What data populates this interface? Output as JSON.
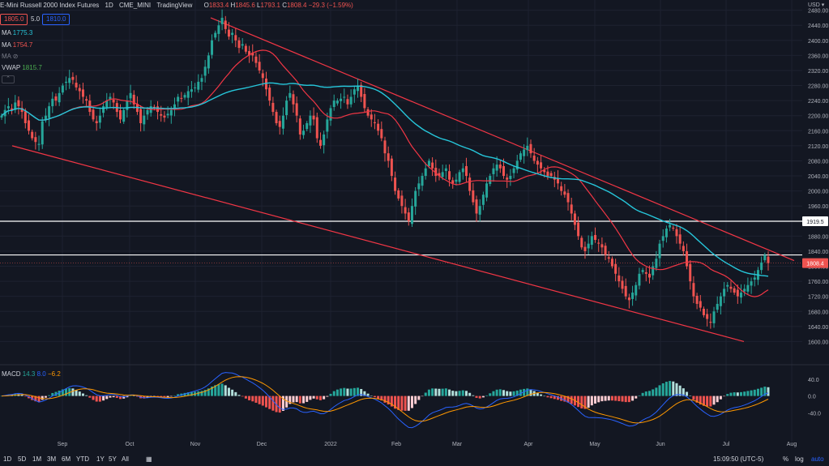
{
  "header": {
    "symbol": "E-Mini Russell 2000 Index Futures",
    "interval": "1D",
    "exchange": "CME_MINI",
    "source": "TradingView",
    "ohlc": {
      "o_label": "O",
      "o": "1833.4",
      "h_label": "H",
      "h": "1845.6",
      "l_label": "L",
      "l": "1793.1",
      "c_label": "C",
      "c": "1808.4",
      "change": "−29.3 (−1.59%)"
    },
    "bid": "1805.0",
    "spread": "5.0",
    "ask": "1810.0"
  },
  "indicators": {
    "ma1_label": "MA",
    "ma1_value": "1775.3",
    "ma2_label": "MA",
    "ma2_value": "1754.7",
    "ma3_label": "MA",
    "vwap_label": "VWAP",
    "vwap_value": "1815.7",
    "macd_label": "MACD",
    "macd_v1": "14.3",
    "macd_v2": "8.0",
    "macd_v3": "−6.2"
  },
  "colors": {
    "background": "#131722",
    "up": "#26a69a",
    "down": "#ef5350",
    "ma_fast": "#f23645",
    "ma_slow": "#26c6da",
    "trendline": "#f23645",
    "level": "#ffffff",
    "macd_line": "#2962ff",
    "signal_line": "#ff9800"
  },
  "bottom_bar": {
    "ranges": [
      "1D",
      "5D",
      "1M",
      "3M",
      "6M",
      "YTD",
      "1Y",
      "5Y",
      "All"
    ],
    "time": "15:09:50 (UTC-5)",
    "pct": "%",
    "log": "log",
    "auto": "auto"
  },
  "chart_data": [
    {
      "type": "candlestick",
      "title": "",
      "y_unit": "USD",
      "ylim": [
        1560,
        2490
      ],
      "y_ticks": [
        2480,
        2440,
        2400,
        2360,
        2320,
        2280,
        2240,
        2200,
        2160,
        2120,
        2080,
        2040,
        2000,
        1960,
        1920,
        1880,
        1840,
        1800,
        1760,
        1720,
        1680,
        1640,
        1600
      ],
      "x_ticks": [
        "Sep",
        "Oct",
        "Nov",
        "Dec",
        "2022",
        "Feb",
        "Mar",
        "Apr",
        "May",
        "Jun",
        "Jul",
        "Aug"
      ],
      "price_labels": {
        "level_1": "1919.5",
        "last": "1808.4"
      },
      "horizontal_levels": [
        1919.5,
        1830
      ],
      "trendlines": [
        {
          "from": [
            "2021-11-08",
            2460
          ],
          "to": [
            "2022-07-26",
            1815
          ]
        },
        {
          "from": [
            "2021-08-12",
            2120
          ],
          "to": [
            "2022-07-16",
            1600
          ]
        }
      ],
      "series": [
        {
          "name": "MA",
          "value": "1775.3"
        },
        {
          "name": "MA",
          "value": "1754.7"
        }
      ],
      "closes": [
        2200,
        2215,
        2225,
        2215,
        2235,
        2225,
        2210,
        2180,
        2160,
        2140,
        2130,
        2125,
        2185,
        2200,
        2225,
        2245,
        2240,
        2260,
        2280,
        2290,
        2300,
        2295,
        2275,
        2265,
        2250,
        2240,
        2210,
        2190,
        2180,
        2200,
        2225,
        2240,
        2250,
        2235,
        2210,
        2190,
        2215,
        2240,
        2260,
        2230,
        2210,
        2180,
        2200,
        2215,
        2225,
        2220,
        2210,
        2200,
        2195,
        2205,
        2215,
        2230,
        2250,
        2245,
        2255,
        2265,
        2270,
        2275,
        2290,
        2300,
        2330,
        2360,
        2400,
        2420,
        2440,
        2460,
        2430,
        2410,
        2420,
        2400,
        2380,
        2390,
        2370,
        2360,
        2360,
        2340,
        2320,
        2300,
        2270,
        2240,
        2210,
        2180,
        2170,
        2200,
        2240,
        2260,
        2230,
        2200,
        2150,
        2160,
        2180,
        2200,
        2190,
        2140,
        2120,
        2150,
        2190,
        2220,
        2240,
        2240,
        2245,
        2250,
        2230,
        2250,
        2270,
        2280,
        2250,
        2220,
        2200,
        2190,
        2180,
        2160,
        2140,
        2100,
        2080,
        2040,
        2000,
        1980,
        1960,
        1940,
        1920,
        1960,
        2000,
        2020,
        2040,
        2060,
        2080,
        2060,
        2040,
        2040,
        2050,
        2060,
        2030,
        2020,
        2030,
        2050,
        2060,
        2040,
        2000,
        1970,
        1940,
        1960,
        1990,
        2020,
        2040,
        2060,
        2070,
        2060,
        2040,
        2030,
        2040,
        2060,
        2080,
        2100,
        2110,
        2120,
        2100,
        2080,
        2070,
        2060,
        2050,
        2040,
        2040,
        2030,
        2020,
        2000,
        1990,
        1970,
        1940,
        1910,
        1880,
        1850,
        1840,
        1860,
        1880,
        1870,
        1860,
        1850,
        1830,
        1820,
        1800,
        1780,
        1760,
        1740,
        1720,
        1710,
        1730,
        1750,
        1780,
        1790,
        1780,
        1770,
        1800,
        1820,
        1860,
        1880,
        1900,
        1910,
        1900,
        1880,
        1860,
        1840,
        1800,
        1760,
        1720,
        1700,
        1690,
        1670,
        1660,
        1650,
        1680,
        1700,
        1720,
        1740,
        1750,
        1740,
        1730,
        1720,
        1730,
        1740,
        1750,
        1760,
        1770,
        1790,
        1810,
        1830,
        1808.4
      ]
    },
    {
      "type": "macd",
      "title": "",
      "ylim": [
        -70,
        55
      ],
      "y_ticks": [
        40.0,
        0.0,
        -40.0
      ],
      "series": [
        {
          "name": "MACD",
          "value": "14.3"
        },
        {
          "name": "",
          "value": "8.0"
        },
        {
          "name": "",
          "value": "−6.2"
        }
      ]
    }
  ]
}
